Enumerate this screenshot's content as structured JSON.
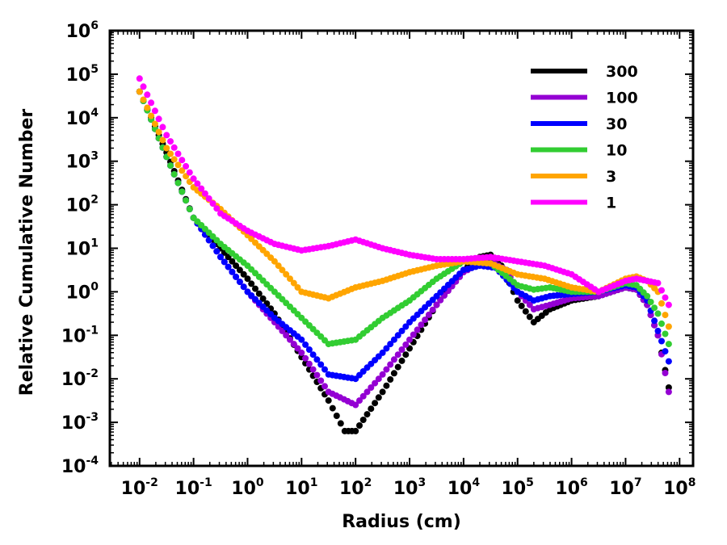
{
  "chart_data": {
    "type": "scatter",
    "title": "",
    "xlabel": "Radius (cm)",
    "ylabel": "Relative Cumulative Number",
    "xscale": "log",
    "yscale": "log",
    "xlim_log10": [
      -2.55,
      8.25
    ],
    "ylim_log10": [
      -4,
      6
    ],
    "x_tick_labels": [
      "10-2",
      "10-1",
      "100",
      "101",
      "102",
      "103",
      "104",
      "105",
      "106",
      "107",
      "108"
    ],
    "y_tick_labels": [
      "10-4",
      "10-3",
      "10-2",
      "10-1",
      "100",
      "101",
      "102",
      "103",
      "104",
      "105",
      "106"
    ],
    "x_tick_exponents": [
      -2,
      -1,
      0,
      1,
      2,
      3,
      4,
      5,
      6,
      7,
      8
    ],
    "y_tick_exponents": [
      -4,
      -3,
      -2,
      -1,
      0,
      1,
      2,
      3,
      4,
      5,
      6
    ],
    "x_tick_base": "10",
    "y_tick_base": "10",
    "legend_position": "top-right",
    "grid": false,
    "series": [
      {
        "name": "300",
        "color": "#000000",
        "log_x": [
          -2,
          -1.5,
          -1,
          -0.5,
          0,
          0.5,
          1,
          1.5,
          1.8,
          2,
          2.5,
          3,
          3.5,
          4,
          4.3,
          4.5,
          4.7,
          5,
          5.3,
          5.6,
          6,
          6.5,
          7,
          7.2,
          7.4,
          7.6,
          7.8
        ],
        "log_y": [
          4.6,
          3.2,
          1.7,
          1.0,
          0.3,
          -0.5,
          -1.5,
          -2.5,
          -3.2,
          -3.2,
          -2.3,
          -1.3,
          -0.3,
          0.5,
          0.8,
          0.85,
          0.6,
          -0.2,
          -0.7,
          -0.4,
          -0.2,
          -0.1,
          0.1,
          0.05,
          -0.3,
          -1.0,
          -2.2
        ]
      },
      {
        "name": "100",
        "color": "#9400D3",
        "log_x": [
          -2,
          -1.5,
          -1,
          -0.5,
          0,
          0.5,
          1,
          1.5,
          2,
          2.5,
          3,
          3.5,
          4,
          4.3,
          4.5,
          4.8,
          5,
          5.3,
          5.6,
          6,
          6.5,
          7,
          7.2,
          7.4,
          7.6,
          7.8
        ],
        "log_y": [
          4.6,
          3.1,
          1.7,
          0.8,
          0.0,
          -0.7,
          -1.4,
          -2.3,
          -2.6,
          -1.9,
          -1.1,
          -0.3,
          0.45,
          0.65,
          0.7,
          0.5,
          0.0,
          -0.4,
          -0.3,
          -0.15,
          -0.1,
          0.1,
          0.05,
          -0.3,
          -1.0,
          -2.3
        ]
      },
      {
        "name": "30",
        "color": "#0000FF",
        "log_x": [
          -2,
          -1.5,
          -1,
          -0.5,
          0,
          0.5,
          1,
          1.5,
          2,
          2.5,
          3,
          3.5,
          4,
          4.3,
          4.6,
          5,
          5.3,
          5.6,
          6,
          6.5,
          7,
          7.2,
          7.4,
          7.6,
          7.8
        ],
        "log_y": [
          4.6,
          3.1,
          1.7,
          0.8,
          0.0,
          -0.6,
          -1.1,
          -1.9,
          -2.0,
          -1.4,
          -0.7,
          -0.1,
          0.5,
          0.6,
          0.55,
          0.0,
          -0.2,
          -0.1,
          -0.05,
          0.0,
          0.15,
          0.1,
          -0.2,
          -0.9,
          -1.6
        ]
      },
      {
        "name": "10",
        "color": "#32CD32",
        "log_x": [
          -2,
          -1.5,
          -1,
          -0.5,
          0,
          0.5,
          1,
          1.5,
          2,
          2.5,
          3,
          3.5,
          4,
          4.5,
          5,
          5.3,
          5.6,
          6,
          6.5,
          7,
          7.2,
          7.4,
          7.6,
          7.8
        ],
        "log_y": [
          4.6,
          3.1,
          1.7,
          1.1,
          0.6,
          0.0,
          -0.6,
          -1.2,
          -1.1,
          -0.6,
          -0.2,
          0.3,
          0.7,
          0.65,
          0.15,
          0.05,
          0.1,
          0.0,
          0.0,
          0.2,
          0.15,
          -0.1,
          -0.5,
          -1.2
        ]
      },
      {
        "name": "3",
        "color": "#FFA500",
        "log_x": [
          -2,
          -1.5,
          -1,
          -0.5,
          0,
          0.5,
          1,
          1.5,
          2,
          2.5,
          3,
          3.5,
          4,
          4.5,
          5,
          5.5,
          6,
          6.5,
          7,
          7.2,
          7.4,
          7.6,
          7.8
        ],
        "log_y": [
          4.6,
          3.3,
          2.4,
          1.9,
          1.3,
          0.7,
          0.0,
          -0.15,
          0.1,
          0.25,
          0.45,
          0.6,
          0.7,
          0.65,
          0.4,
          0.3,
          0.1,
          0.0,
          0.3,
          0.35,
          0.25,
          0.0,
          -0.8
        ]
      },
      {
        "name": "1",
        "color": "#FF00FF",
        "log_x": [
          -2,
          -1.5,
          -1,
          -0.5,
          0,
          0.5,
          1,
          1.5,
          2,
          2.5,
          3,
          3.5,
          4,
          4.5,
          5,
          5.5,
          6,
          6.5,
          7,
          7.2,
          7.4,
          7.6,
          7.8
        ],
        "log_y": [
          4.9,
          3.6,
          2.6,
          1.8,
          1.4,
          1.1,
          0.95,
          1.05,
          1.2,
          1.0,
          0.85,
          0.75,
          0.75,
          0.8,
          0.7,
          0.6,
          0.4,
          0.0,
          0.25,
          0.3,
          0.25,
          0.2,
          -0.3
        ]
      }
    ]
  }
}
